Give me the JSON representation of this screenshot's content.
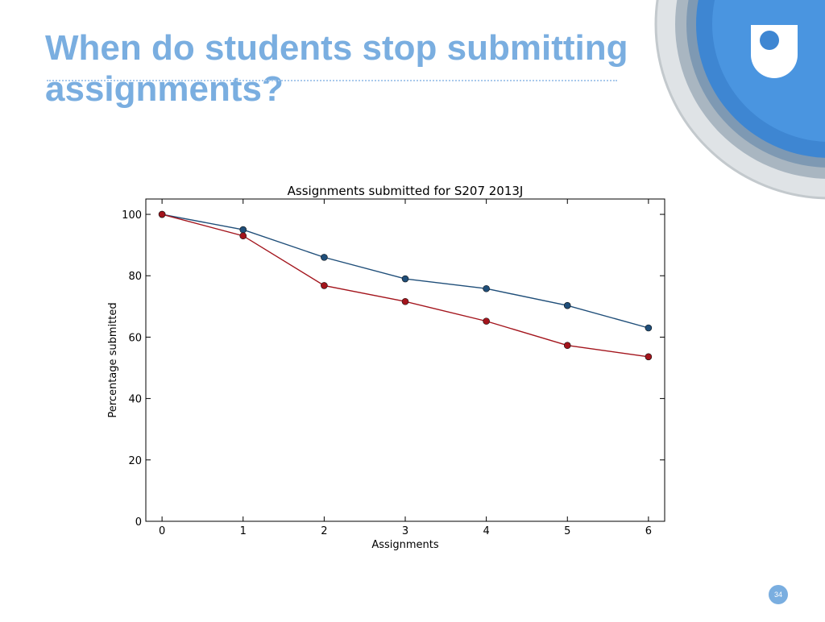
{
  "slide": {
    "title": "When do students stop submitting assignments?",
    "page_number": "34"
  },
  "colors": {
    "title": "#7aaee0",
    "accent_blue": "#3f8fd8",
    "series_blue": "#1f4e79",
    "series_red": "#a3141c"
  },
  "logo": {
    "name": "open-university-logo"
  },
  "chart_data": {
    "type": "line",
    "title": "Assignments submitted for S207 2013J",
    "xlabel": "Assignments",
    "ylabel": "Percentage submitted",
    "x": [
      0,
      1,
      2,
      3,
      4,
      5,
      6
    ],
    "xticks": [
      "0",
      "1",
      "2",
      "3",
      "4",
      "5",
      "6"
    ],
    "yticks": [
      "0",
      "20",
      "40",
      "60",
      "80",
      "100"
    ],
    "xlim": [
      -0.2,
      6.2
    ],
    "ylim": [
      0,
      105
    ],
    "grid": false,
    "legend": "none",
    "series": [
      {
        "color": "#1f4e79",
        "values": [
          100,
          95,
          86,
          79,
          75.8,
          70.3,
          63
        ]
      },
      {
        "color": "#a3141c",
        "values": [
          100,
          93,
          76.8,
          71.6,
          65.2,
          57.3,
          53.6
        ]
      }
    ]
  }
}
